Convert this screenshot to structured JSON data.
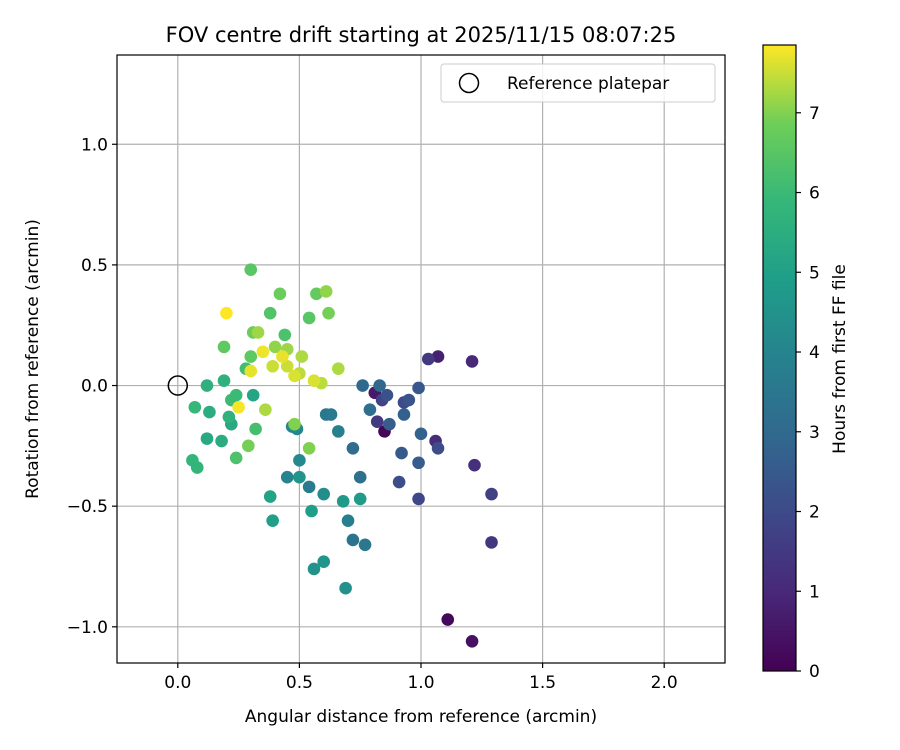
{
  "chart_data": {
    "type": "scatter",
    "title": "FOV centre drift starting at 2025/11/15 08:07:25",
    "xlabel": "Angular distance from reference (arcmin)",
    "ylabel": "Rotation from reference (arcmin)",
    "xlim": [
      -0.25,
      2.25
    ],
    "ylim": [
      -1.15,
      1.37
    ],
    "x_ticks": [
      0.0,
      0.5,
      1.0,
      1.5,
      2.0
    ],
    "x_tick_labels": [
      "0.0",
      "0.5",
      "1.0",
      "1.5",
      "2.0"
    ],
    "y_ticks": [
      -1.0,
      -0.5,
      0.0,
      0.5,
      1.0
    ],
    "y_tick_labels": [
      "−1.0",
      "−0.5",
      "0.0",
      "0.5",
      "1.0"
    ],
    "grid": true,
    "legend": {
      "placement": "top-right",
      "entries": [
        "Reference platepar"
      ]
    },
    "reference_point": {
      "x": 0.0,
      "y": 0.0,
      "label": "Reference platepar"
    },
    "colorbar": {
      "label": "Hours from first FF file",
      "range": [
        0,
        7.85
      ],
      "ticks": [
        0,
        1,
        2,
        3,
        4,
        5,
        6,
        7
      ],
      "tick_labels": [
        "0",
        "1",
        "2",
        "3",
        "4",
        "5",
        "6",
        "7"
      ],
      "colormap": "viridis"
    },
    "points": [
      {
        "x": 0.85,
        "y": -0.19,
        "h": 0.1
      },
      {
        "x": 1.11,
        "y": -0.97,
        "h": 0.2
      },
      {
        "x": 1.21,
        "y": -1.06,
        "h": 0.4
      },
      {
        "x": 0.81,
        "y": -0.03,
        "h": 0.6
      },
      {
        "x": 1.07,
        "y": 0.12,
        "h": 0.8
      },
      {
        "x": 1.21,
        "y": 0.1,
        "h": 1.0
      },
      {
        "x": 1.06,
        "y": -0.23,
        "h": 1.1
      },
      {
        "x": 1.22,
        "y": -0.33,
        "h": 1.2
      },
      {
        "x": 1.29,
        "y": -0.65,
        "h": 1.4
      },
      {
        "x": 0.82,
        "y": -0.15,
        "h": 1.5
      },
      {
        "x": 1.03,
        "y": 0.11,
        "h": 1.5
      },
      {
        "x": 1.29,
        "y": -0.45,
        "h": 1.7
      },
      {
        "x": 0.84,
        "y": -0.06,
        "h": 1.8
      },
      {
        "x": 0.99,
        "y": -0.47,
        "h": 1.9
      },
      {
        "x": 0.93,
        "y": -0.07,
        "h": 2.0
      },
      {
        "x": 0.91,
        "y": -0.4,
        "h": 2.1
      },
      {
        "x": 1.07,
        "y": -0.26,
        "h": 2.1
      },
      {
        "x": 0.86,
        "y": -0.04,
        "h": 2.2
      },
      {
        "x": 0.95,
        "y": -0.06,
        "h": 2.3
      },
      {
        "x": 0.99,
        "y": -0.01,
        "h": 2.4
      },
      {
        "x": 0.92,
        "y": -0.28,
        "h": 2.5
      },
      {
        "x": 0.99,
        "y": -0.32,
        "h": 2.6
      },
      {
        "x": 0.87,
        "y": -0.16,
        "h": 2.6
      },
      {
        "x": 0.93,
        "y": -0.12,
        "h": 2.7
      },
      {
        "x": 1.0,
        "y": -0.2,
        "h": 2.8
      },
      {
        "x": 0.83,
        "y": 0.0,
        "h": 2.9
      },
      {
        "x": 0.76,
        "y": 0.0,
        "h": 3.0
      },
      {
        "x": 0.72,
        "y": -0.26,
        "h": 3.1
      },
      {
        "x": 0.79,
        "y": -0.1,
        "h": 3.2
      },
      {
        "x": 0.75,
        "y": -0.38,
        "h": 3.3
      },
      {
        "x": 0.72,
        "y": -0.64,
        "h": 3.4
      },
      {
        "x": 0.77,
        "y": -0.66,
        "h": 3.5
      },
      {
        "x": 0.61,
        "y": -0.12,
        "h": 3.5
      },
      {
        "x": 0.63,
        "y": -0.12,
        "h": 3.6
      },
      {
        "x": 0.54,
        "y": -0.42,
        "h": 3.7
      },
      {
        "x": 0.7,
        "y": -0.56,
        "h": 3.8
      },
      {
        "x": 0.66,
        "y": -0.19,
        "h": 3.9
      },
      {
        "x": 0.45,
        "y": -0.38,
        "h": 4.0
      },
      {
        "x": 0.49,
        "y": -0.18,
        "h": 4.1
      },
      {
        "x": 0.47,
        "y": -0.17,
        "h": 4.1
      },
      {
        "x": 0.5,
        "y": -0.31,
        "h": 4.2
      },
      {
        "x": 0.6,
        "y": -0.45,
        "h": 4.3
      },
      {
        "x": 0.69,
        "y": -0.84,
        "h": 4.4
      },
      {
        "x": 0.56,
        "y": -0.76,
        "h": 4.5
      },
      {
        "x": 0.6,
        "y": -0.73,
        "h": 4.6
      },
      {
        "x": 0.5,
        "y": -0.38,
        "h": 4.6
      },
      {
        "x": 0.68,
        "y": -0.48,
        "h": 4.7
      },
      {
        "x": 0.75,
        "y": -0.47,
        "h": 4.8
      },
      {
        "x": 0.55,
        "y": -0.52,
        "h": 4.9
      },
      {
        "x": 0.39,
        "y": -0.56,
        "h": 5.0
      },
      {
        "x": 0.38,
        "y": -0.46,
        "h": 5.1
      },
      {
        "x": 0.31,
        "y": -0.04,
        "h": 5.2
      },
      {
        "x": 0.22,
        "y": -0.16,
        "h": 5.3
      },
      {
        "x": 0.12,
        "y": -0.22,
        "h": 5.3
      },
      {
        "x": 0.18,
        "y": -0.23,
        "h": 5.4
      },
      {
        "x": 0.13,
        "y": -0.11,
        "h": 5.5
      },
      {
        "x": 0.12,
        "y": 0.0,
        "h": 5.6
      },
      {
        "x": 0.19,
        "y": 0.02,
        "h": 5.6
      },
      {
        "x": 0.21,
        "y": -0.13,
        "h": 5.7
      },
      {
        "x": 0.08,
        "y": -0.34,
        "h": 5.8
      },
      {
        "x": 0.06,
        "y": -0.31,
        "h": 5.8
      },
      {
        "x": 0.07,
        "y": -0.09,
        "h": 5.9
      },
      {
        "x": 0.22,
        "y": -0.06,
        "h": 6.0
      },
      {
        "x": 0.24,
        "y": -0.04,
        "h": 6.0
      },
      {
        "x": 0.28,
        "y": 0.07,
        "h": 6.1
      },
      {
        "x": 0.32,
        "y": -0.18,
        "h": 6.2
      },
      {
        "x": 0.24,
        "y": -0.3,
        "h": 6.3
      },
      {
        "x": 0.44,
        "y": 0.21,
        "h": 6.3
      },
      {
        "x": 0.38,
        "y": 0.3,
        "h": 6.4
      },
      {
        "x": 0.3,
        "y": 0.48,
        "h": 6.5
      },
      {
        "x": 0.54,
        "y": 0.28,
        "h": 6.5
      },
      {
        "x": 0.19,
        "y": 0.16,
        "h": 6.6
      },
      {
        "x": 0.3,
        "y": 0.12,
        "h": 6.6
      },
      {
        "x": 0.57,
        "y": 0.38,
        "h": 6.7
      },
      {
        "x": 0.42,
        "y": 0.38,
        "h": 6.8
      },
      {
        "x": 0.31,
        "y": 0.22,
        "h": 6.8
      },
      {
        "x": 0.29,
        "y": -0.25,
        "h": 6.9
      },
      {
        "x": 0.62,
        "y": 0.3,
        "h": 6.9
      },
      {
        "x": 0.54,
        "y": -0.26,
        "h": 7.0
      },
      {
        "x": 0.48,
        "y": -0.16,
        "h": 7.0
      },
      {
        "x": 0.61,
        "y": 0.39,
        "h": 7.1
      },
      {
        "x": 0.4,
        "y": 0.16,
        "h": 7.1
      },
      {
        "x": 0.33,
        "y": 0.22,
        "h": 7.2
      },
      {
        "x": 0.45,
        "y": 0.15,
        "h": 7.2
      },
      {
        "x": 0.51,
        "y": 0.12,
        "h": 7.3
      },
      {
        "x": 0.66,
        "y": 0.07,
        "h": 7.3
      },
      {
        "x": 0.36,
        "y": -0.1,
        "h": 7.3
      },
      {
        "x": 0.59,
        "y": 0.01,
        "h": 7.4
      },
      {
        "x": 0.5,
        "y": 0.05,
        "h": 7.4
      },
      {
        "x": 0.45,
        "y": 0.08,
        "h": 7.5
      },
      {
        "x": 0.39,
        "y": 0.08,
        "h": 7.5
      },
      {
        "x": 0.48,
        "y": 0.04,
        "h": 7.6
      },
      {
        "x": 0.56,
        "y": 0.02,
        "h": 7.6
      },
      {
        "x": 0.43,
        "y": 0.12,
        "h": 7.7
      },
      {
        "x": 0.3,
        "y": 0.06,
        "h": 7.7
      },
      {
        "x": 0.35,
        "y": 0.14,
        "h": 7.75
      },
      {
        "x": 0.25,
        "y": -0.09,
        "h": 7.8
      },
      {
        "x": 0.2,
        "y": 0.3,
        "h": 7.85
      }
    ]
  }
}
